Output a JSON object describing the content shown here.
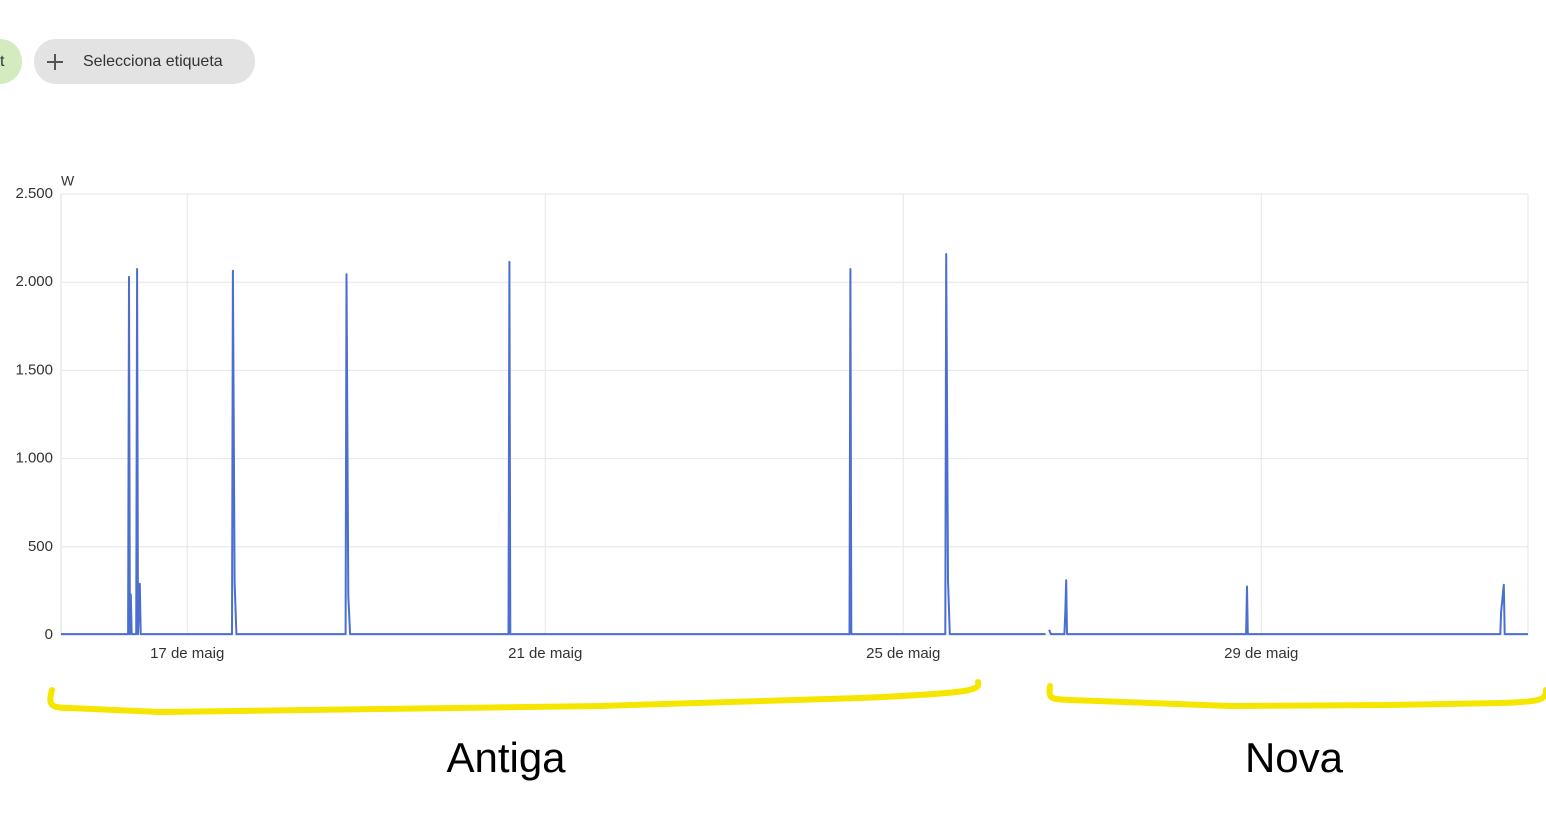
{
  "chips": {
    "partial": "t",
    "add_label": "Selecciona etiqueta"
  },
  "chart_data": {
    "type": "line",
    "y_unit": "W",
    "xlim": [
      15.59,
      31.98
    ],
    "xticks": [
      {
        "value": 17,
        "label": "17 de maig"
      },
      {
        "value": 21,
        "label": "21 de maig"
      },
      {
        "value": 25,
        "label": "25 de maig"
      },
      {
        "value": 29,
        "label": "29 de maig"
      }
    ],
    "ylim": [
      0,
      2500
    ],
    "yticks": [
      0,
      500,
      {
        "value": 1000,
        "label": "1.000"
      },
      {
        "value": 1500,
        "label": "1.500"
      },
      {
        "value": 2000,
        "label": "2.000"
      },
      {
        "value": 2500,
        "label": "2.500"
      }
    ],
    "grid": true,
    "series": [
      {
        "color": "#4a6fd1",
        "x": [
          15.59,
          16.34,
          16.35,
          16.36,
          16.37,
          16.38,
          16.43,
          16.44,
          16.45,
          16.47,
          16.48,
          17.5,
          17.51,
          17.53,
          17.55,
          18.77,
          18.78,
          18.8,
          18.82,
          20.59,
          20.6,
          20.61,
          24.4,
          24.41,
          24.42,
          25.47,
          25.48,
          25.5,
          25.52,
          26.59,
          26.6,
          26.63,
          26.65,
          26.8,
          26.81,
          26.82,
          26.83,
          28.83,
          28.84,
          28.85,
          31.67,
          31.68,
          31.71,
          31.72,
          31.98
        ],
        "values": [
          5,
          5,
          2030,
          5,
          230,
          5,
          5,
          2075,
          5,
          290,
          5,
          5,
          2065,
          300,
          5,
          5,
          2045,
          220,
          5,
          5,
          2115,
          5,
          5,
          2075,
          5,
          5,
          2160,
          310,
          5,
          5,
          null,
          30,
          5,
          5,
          130,
          310,
          5,
          5,
          275,
          5,
          5,
          130,
          285,
          5,
          5
        ]
      }
    ],
    "annotations": [
      "Antiga",
      "Nova"
    ]
  }
}
